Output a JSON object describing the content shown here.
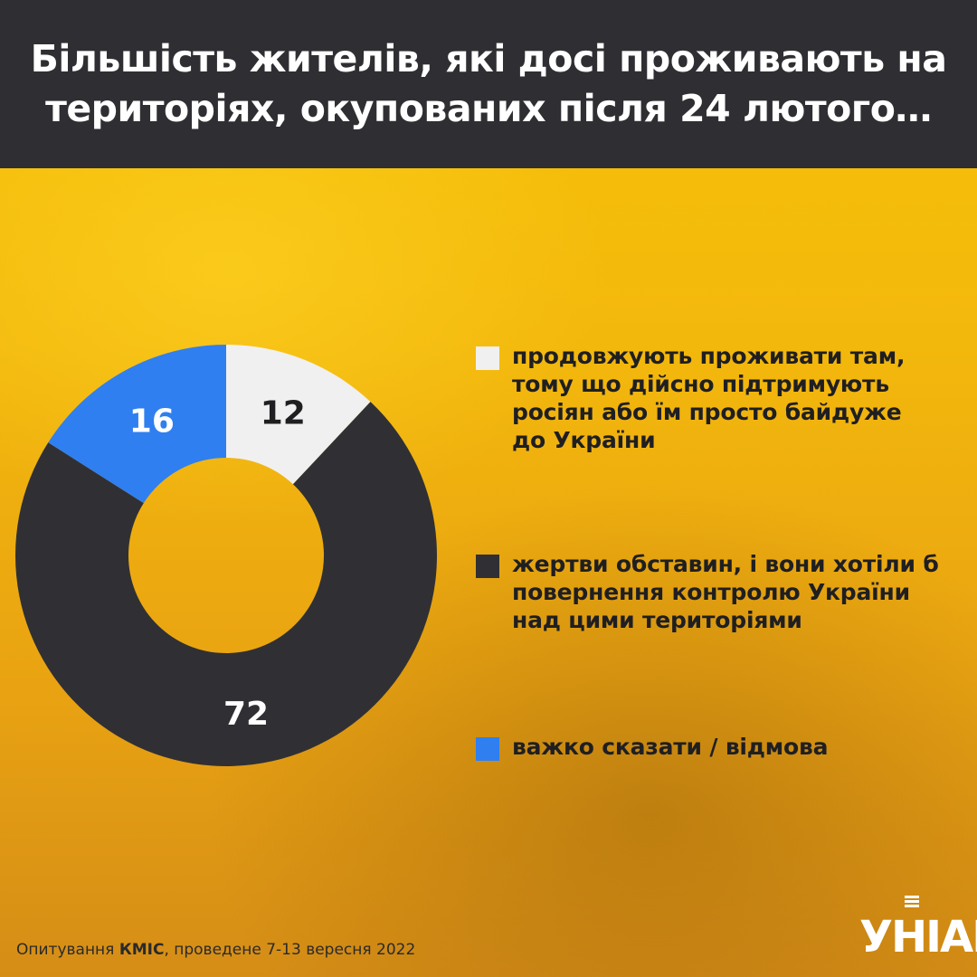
{
  "header": {
    "title": "Більшість жителів, які досі проживають на територіях, окупованих після 24 лютого…"
  },
  "chart_data": {
    "type": "pie",
    "donut": true,
    "categories": [
      "продовжують проживати там, тому що дійсно підтримують росіян або їм просто байдуже до України",
      "жертви обставин, і вони хотіли б повернення контролю України над цими територіями",
      "важко сказати / відмова"
    ],
    "values": [
      12,
      72,
      16
    ],
    "colors": [
      "#f0f0f0",
      "#303034",
      "#2f7ff0"
    ],
    "value_label_colors": [
      "#1f1f22",
      "#ffffff",
      "#ffffff"
    ],
    "legend_placement": "right",
    "title": "Більшість жителів, які досі проживають на територіях, окупованих після 24 лютого…"
  },
  "footer": {
    "source_prefix": "Опитування ",
    "source_org": "КМІС",
    "source_suffix": ", проведене 7-13 вересня 2022",
    "logo_text": "УНІАН"
  }
}
